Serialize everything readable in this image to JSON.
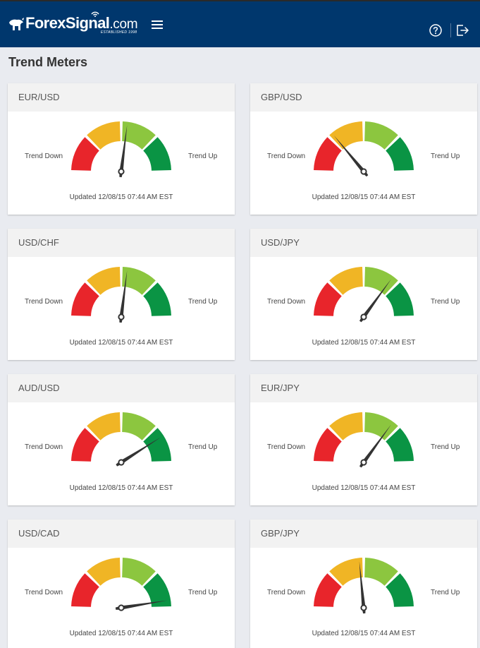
{
  "header": {
    "logo_main": "ForexSignal",
    "logo_dotcom": ".com",
    "logo_sub": "ESTABLISHED 1998",
    "colors": {
      "bar": "#00376d"
    },
    "icons": {
      "menu": "hamburger-menu-icon",
      "help": "help-circle-icon",
      "logout": "logout-icon"
    }
  },
  "page": {
    "title": "Trend Meters"
  },
  "labels": {
    "trend_down": "Trend Down",
    "trend_up": "Trend Up"
  },
  "gauge_colors": [
    "#e8252b",
    "#f0b525",
    "#8cc63f",
    "#0a9444"
  ],
  "meters": [
    {
      "pair": "EUR/USD",
      "reading": 0.54,
      "updated": "Updated 12/08/15 07:44 AM EST"
    },
    {
      "pair": "GBP/USD",
      "reading": 0.28,
      "updated": "Updated 12/08/15 07:44 AM EST"
    },
    {
      "pair": "USD/CHF",
      "reading": 0.54,
      "updated": "Updated 12/08/15 07:44 AM EST"
    },
    {
      "pair": "USD/JPY",
      "reading": 0.7,
      "updated": "Updated 12/08/15 07:44 AM EST"
    },
    {
      "pair": "AUD/USD",
      "reading": 0.82,
      "updated": "Updated 12/08/15 07:44 AM EST"
    },
    {
      "pair": "EUR/JPY",
      "reading": 0.7,
      "updated": "Updated 12/08/15 07:44 AM EST"
    },
    {
      "pair": "USD/CAD",
      "reading": 0.95,
      "updated": "Updated 12/08/15 07:44 AM EST"
    },
    {
      "pair": "GBP/JPY",
      "reading": 0.47,
      "updated": "Updated 12/08/15 07:44 AM EST"
    }
  ]
}
